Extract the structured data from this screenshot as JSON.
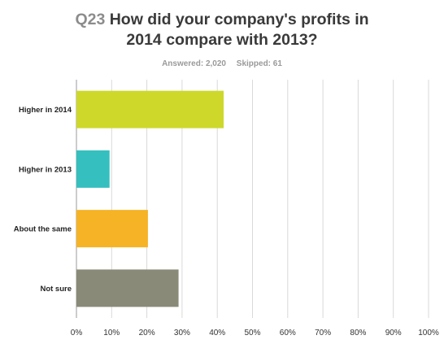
{
  "question": {
    "number": "Q23",
    "title_line1": "How did your company's profits in",
    "title_line2": "2014 compare with 2013?",
    "answered": "Answered: 2,020",
    "skipped": "Skipped: 61"
  },
  "colors": {
    "higher_2014": "#cdd82b",
    "higher_2013": "#35bfbf",
    "about_same": "#f5b325",
    "not_sure": "#8a8a78",
    "grid": "#d9d9d9",
    "axis": "#9a9a9a"
  },
  "chart_data": {
    "type": "bar",
    "orientation": "horizontal",
    "categories": [
      "Higher in 2014",
      "Higher in 2013",
      "About the same",
      "Not sure"
    ],
    "values": [
      41.8,
      9.4,
      20.3,
      29.0
    ],
    "value_unit": "%",
    "xlim": [
      0,
      100
    ],
    "xticks": [
      "0%",
      "10%",
      "20%",
      "30%",
      "40%",
      "50%",
      "60%",
      "70%",
      "80%",
      "90%",
      "100%"
    ],
    "grid": true,
    "title": "How did your company's profits in 2014 compare with 2013?",
    "xlabel": "",
    "ylabel": ""
  }
}
